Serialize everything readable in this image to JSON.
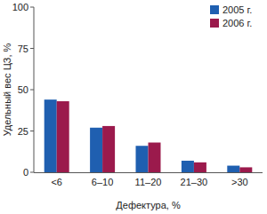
{
  "chart_data": {
    "type": "bar",
    "y_label": "Удельный вес ЦЗ, %",
    "x_label": "Дефектура, %",
    "categories": [
      "<6",
      "6–10",
      "11–20",
      "21–30",
      ">30"
    ],
    "series": [
      {
        "name": "2005 г.",
        "color": "#1f5fb0",
        "values": [
          44,
          27,
          16,
          7,
          4
        ]
      },
      {
        "name": "2006 г.",
        "color": "#9b1a4c",
        "values": [
          43,
          28,
          18,
          6,
          3
        ]
      }
    ],
    "ylim": [
      0,
      100
    ],
    "yticks": [
      0,
      25,
      50,
      75,
      100
    ],
    "grid": false,
    "legend": "upper right"
  }
}
